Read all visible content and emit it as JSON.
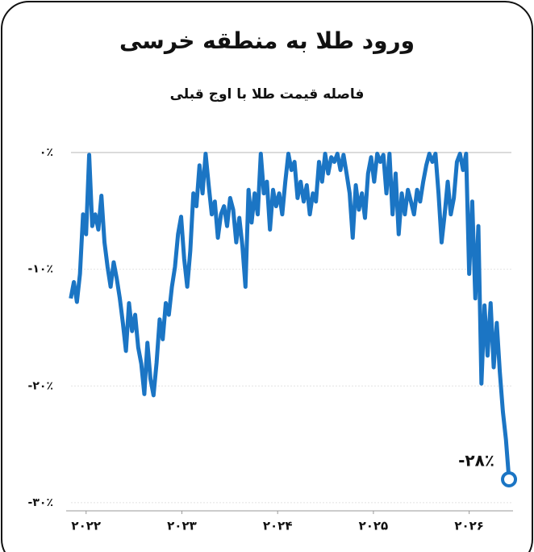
{
  "chart_data": {
    "type": "line",
    "title": "ورود طلا به منطقه خرسی",
    "subtitle": "فاصله قیمت طلا با اوج قبلی",
    "x": [
      2021.84,
      2021.872,
      2021.904,
      2021.936,
      2021.968,
      2022,
      2022.032,
      2022.064,
      2022.096,
      2022.128,
      2022.16,
      2022.192,
      2022.224,
      2022.256,
      2022.288,
      2022.32,
      2022.352,
      2022.384,
      2022.416,
      2022.448,
      2022.48,
      2022.512,
      2022.544,
      2022.576,
      2022.608,
      2022.64,
      2022.672,
      2022.704,
      2022.736,
      2022.768,
      2022.8,
      2022.832,
      2022.864,
      2022.896,
      2022.928,
      2022.96,
      2022.992,
      2023.024,
      2023.056,
      2023.088,
      2023.12,
      2023.152,
      2023.184,
      2023.216,
      2023.248,
      2023.28,
      2023.312,
      2023.344,
      2023.376,
      2023.408,
      2023.44,
      2023.472,
      2023.504,
      2023.536,
      2023.568,
      2023.6,
      2023.632,
      2023.664,
      2023.696,
      2023.728,
      2023.76,
      2023.792,
      2023.824,
      2023.856,
      2023.888,
      2023.92,
      2023.952,
      2023.984,
      2024.016,
      2024.048,
      2024.08,
      2024.112,
      2024.144,
      2024.176,
      2024.208,
      2024.24,
      2024.272,
      2024.304,
      2024.336,
      2024.368,
      2024.4,
      2024.432,
      2024.464,
      2024.496,
      2024.528,
      2024.56,
      2024.592,
      2024.624,
      2024.656,
      2024.688,
      2024.72,
      2024.752,
      2024.784,
      2024.816,
      2024.848,
      2024.88,
      2024.912,
      2024.944,
      2024.976,
      2025.008,
      2025.04,
      2025.072,
      2025.104,
      2025.136,
      2025.168,
      2025.2,
      2025.232,
      2025.264,
      2025.296,
      2025.328,
      2025.36,
      2025.392,
      2025.424,
      2025.456,
      2025.488,
      2025.52,
      2025.552,
      2025.584,
      2025.616,
      2025.648,
      2025.68,
      2025.712,
      2025.744,
      2025.776,
      2025.808,
      2025.84,
      2025.872,
      2025.904,
      2025.936,
      2025.968,
      2026,
      2026.032,
      2026.064,
      2026.096,
      2026.128,
      2026.16,
      2026.192,
      2026.224,
      2026.256,
      2026.288,
      2026.32,
      2026.352,
      2026.384,
      2026.416
    ],
    "series": [
      {
        "color": "#1b75c4",
        "end_label": "-۲۸٪",
        "values": [
          -12.5,
          -11.1,
          -12.8,
          -10.4,
          -5.3,
          -7.0,
          -0.2,
          -6.3,
          -5.3,
          -6.6,
          -3.7,
          -7.7,
          -9.8,
          -11.5,
          -9.4,
          -10.8,
          -12.5,
          -14.6,
          -17.0,
          -12.9,
          -15.3,
          -13.9,
          -16.7,
          -18.1,
          -20.7,
          -16.3,
          -19.4,
          -20.8,
          -18.0,
          -14.3,
          -16.0,
          -12.9,
          -13.9,
          -11.5,
          -9.8,
          -7.0,
          -5.5,
          -9.1,
          -11.5,
          -8.4,
          -3.5,
          -4.6,
          -1.1,
          -3.5,
          -0.1,
          -2.8,
          -5.3,
          -4.2,
          -7.3,
          -5.3,
          -4.6,
          -6.3,
          -3.9,
          -4.9,
          -7.7,
          -5.6,
          -8.0,
          -11.5,
          -3.2,
          -6.0,
          -3.5,
          -5.3,
          -0.1,
          -3.5,
          -2.5,
          -6.6,
          -3.2,
          -4.6,
          -3.5,
          -5.3,
          -2.5,
          -0.1,
          -1.5,
          -0.8,
          -3.9,
          -2.5,
          -4.2,
          -2.8,
          -5.3,
          -3.5,
          -4.2,
          -0.8,
          -2.5,
          -0.1,
          -1.8,
          -0.4,
          -0.8,
          -0.1,
          -1.5,
          -0.2,
          -1.8,
          -3.5,
          -7.3,
          -2.8,
          -4.9,
          -3.5,
          -5.6,
          -1.8,
          -0.4,
          -2.5,
          -0.1,
          -0.8,
          -0.2,
          -3.5,
          -0.1,
          -5.3,
          -1.8,
          -7.0,
          -3.5,
          -5.3,
          -3.2,
          -4.2,
          -5.3,
          -3.2,
          -4.2,
          -2.5,
          -1.1,
          -0.1,
          -0.8,
          -0.1,
          -3.5,
          -7.7,
          -5.3,
          -2.5,
          -5.3,
          -3.9,
          -0.8,
          -0.1,
          -1.5,
          -0.1,
          -10.4,
          -4.2,
          -12.5,
          -6.3,
          -19.8,
          -13.1,
          -17.4,
          -12.9,
          -18.4,
          -14.6,
          -18.8,
          -22.2,
          -24.6,
          -28
        ]
      }
    ],
    "xlim": [
      2021.8,
      2026.5
    ],
    "xticks": [
      {
        "value": 2022,
        "label": "۲۰۲۲"
      },
      {
        "value": 2023,
        "label": "۲۰۲۳"
      },
      {
        "value": 2024,
        "label": "۲۰۲۴"
      },
      {
        "value": 2025,
        "label": "۲۰۲۵"
      },
      {
        "value": 2026,
        "label": "۲۰۲۶"
      }
    ],
    "ylim": [
      -30.7,
      0
    ],
    "yticks": [
      {
        "value": 0,
        "label": "۰٪"
      },
      {
        "value": -10,
        "label": "-۱۰٪"
      },
      {
        "value": -20,
        "label": "-۲۰٪"
      },
      {
        "value": -30,
        "label": "-۳۰٪"
      }
    ],
    "grid": true
  }
}
